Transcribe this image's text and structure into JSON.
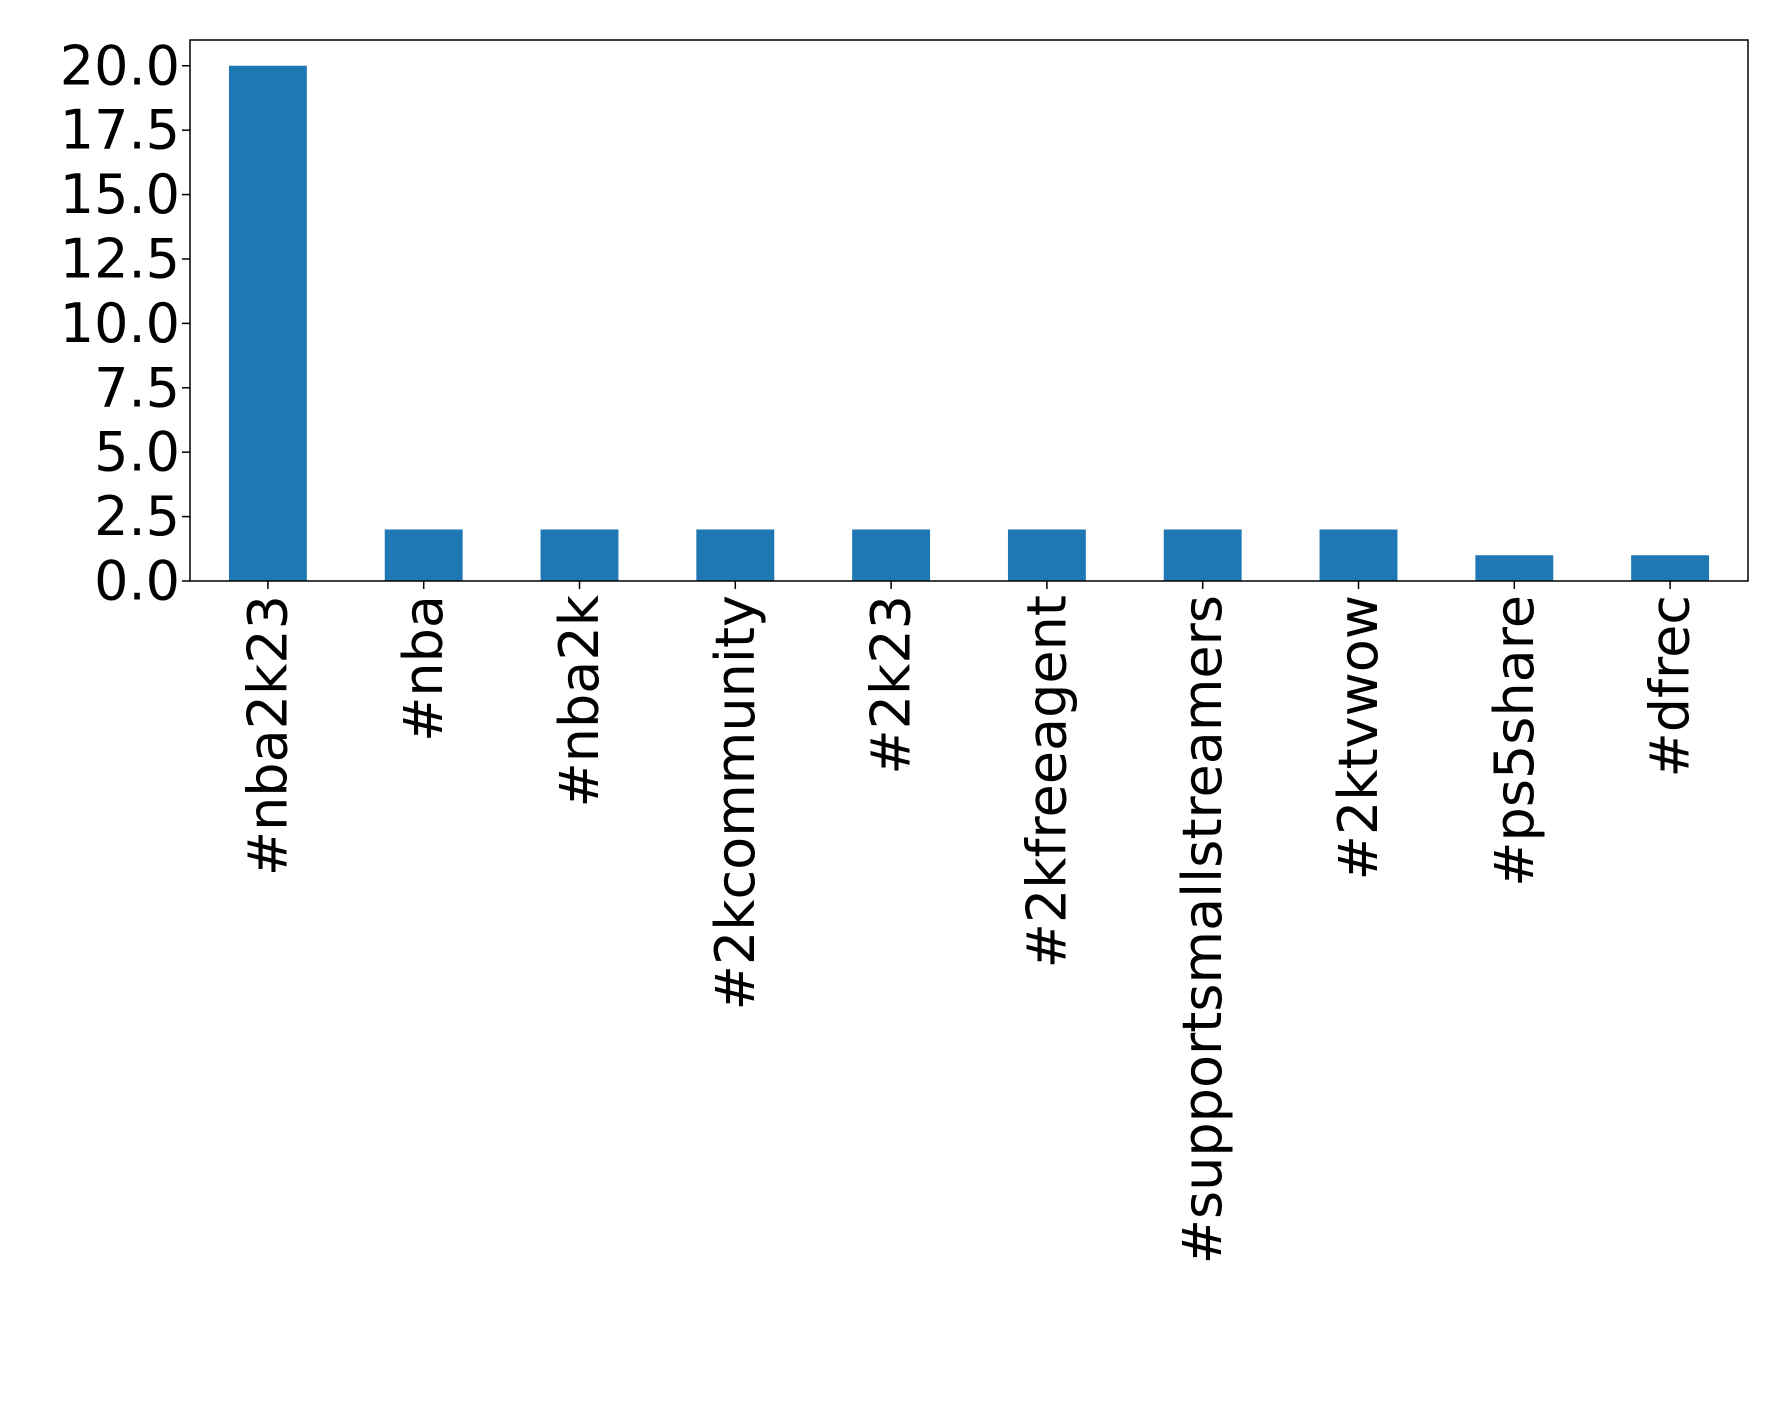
{
  "chart_data": {
    "type": "bar",
    "categories": [
      "#nba2k23",
      "#nba",
      "#nba2k",
      "#2kcommunity",
      "#2k23",
      "#2kfreeagent",
      "#supportsmallstreamers",
      "#2ktvwow",
      "#ps5share",
      "#dfrec"
    ],
    "values": [
      20,
      2,
      2,
      2,
      2,
      2,
      2,
      2,
      1,
      1
    ],
    "color": "#1f77b4",
    "ylim": [
      0,
      21
    ],
    "yticks": [
      {
        "value": 0,
        "label": "0.0"
      },
      {
        "value": 2.5,
        "label": "2.5"
      },
      {
        "value": 5,
        "label": "5.0"
      },
      {
        "value": 7.5,
        "label": "7.5"
      },
      {
        "value": 10,
        "label": "10.0"
      },
      {
        "value": 12.5,
        "label": "12.5"
      },
      {
        "value": 15,
        "label": "15.0"
      },
      {
        "value": 17.5,
        "label": "17.5"
      },
      {
        "value": 20,
        "label": "20.0"
      }
    ],
    "grid": false
  }
}
